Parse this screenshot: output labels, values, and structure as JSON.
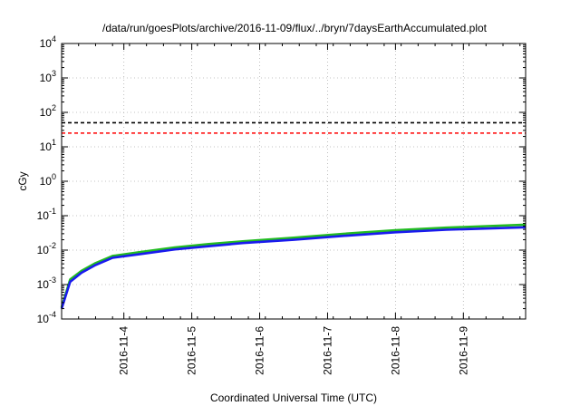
{
  "chart_data": {
    "type": "line",
    "title": "/data/run/goesPlots/archive/2016-11-09/flux/../bryn/7daysEarthAccumulated.plot",
    "xlabel": "Coordinated Universal Time (UTC)",
    "ylabel": "cGy",
    "yscale": "log",
    "ylim": [
      0.0001,
      10000
    ],
    "xlim": [
      "2016-11-03T02:00",
      "2016-11-09T22:00"
    ],
    "grid": true,
    "y_ticks": [
      {
        "value": 0.0001,
        "base": "10",
        "exp": "-4"
      },
      {
        "value": 0.001,
        "base": "10",
        "exp": "-3"
      },
      {
        "value": 0.01,
        "base": "10",
        "exp": "-2"
      },
      {
        "value": 0.1,
        "base": "10",
        "exp": "-1"
      },
      {
        "value": 1,
        "base": "10",
        "exp": "0"
      },
      {
        "value": 10,
        "base": "10",
        "exp": "1"
      },
      {
        "value": 100,
        "base": "10",
        "exp": "2"
      },
      {
        "value": 1000,
        "base": "10",
        "exp": "3"
      },
      {
        "value": 10000,
        "base": "10",
        "exp": "4"
      }
    ],
    "x_ticks": [
      "2016-11-4",
      "2016-11-5",
      "2016-11-6",
      "2016-11-7",
      "2016-11-8",
      "2016-11-9"
    ],
    "reference_lines": [
      {
        "y": 50,
        "color": "#000000",
        "style": "dashed"
      },
      {
        "y": 25,
        "color": "#ff0000",
        "style": "dashed"
      }
    ],
    "series": [
      {
        "color": "#22bb22",
        "points": [
          [
            "2016-11-03T02:00",
            0.00022
          ],
          [
            "2016-11-03T05:00",
            0.0014
          ],
          [
            "2016-11-03T09:00",
            0.0025
          ],
          [
            "2016-11-03T14:00",
            0.0042
          ],
          [
            "2016-11-03T20:00",
            0.0068
          ],
          [
            "2016-11-04T06:00",
            0.0088
          ],
          [
            "2016-11-04T18:00",
            0.012
          ],
          [
            "2016-11-05T06:00",
            0.015
          ],
          [
            "2016-11-05T18:00",
            0.018
          ],
          [
            "2016-11-06T12:00",
            0.023
          ],
          [
            "2016-11-07T06:00",
            0.03
          ],
          [
            "2016-11-08T00:00",
            0.038
          ],
          [
            "2016-11-08T18:00",
            0.045
          ],
          [
            "2016-11-09T22:00",
            0.055
          ]
        ]
      },
      {
        "color": "#1a1aee",
        "points": [
          [
            "2016-11-03T02:00",
            0.0002
          ],
          [
            "2016-11-03T05:00",
            0.0012
          ],
          [
            "2016-11-03T09:00",
            0.0022
          ],
          [
            "2016-11-03T14:00",
            0.0037
          ],
          [
            "2016-11-03T20:00",
            0.006
          ],
          [
            "2016-11-04T06:00",
            0.0077
          ],
          [
            "2016-11-04T18:00",
            0.0105
          ],
          [
            "2016-11-05T06:00",
            0.013
          ],
          [
            "2016-11-05T18:00",
            0.016
          ],
          [
            "2016-11-06T12:00",
            0.02
          ],
          [
            "2016-11-07T06:00",
            0.026
          ],
          [
            "2016-11-08T00:00",
            0.033
          ],
          [
            "2016-11-08T18:00",
            0.039
          ],
          [
            "2016-11-09T22:00",
            0.046
          ]
        ]
      }
    ]
  }
}
